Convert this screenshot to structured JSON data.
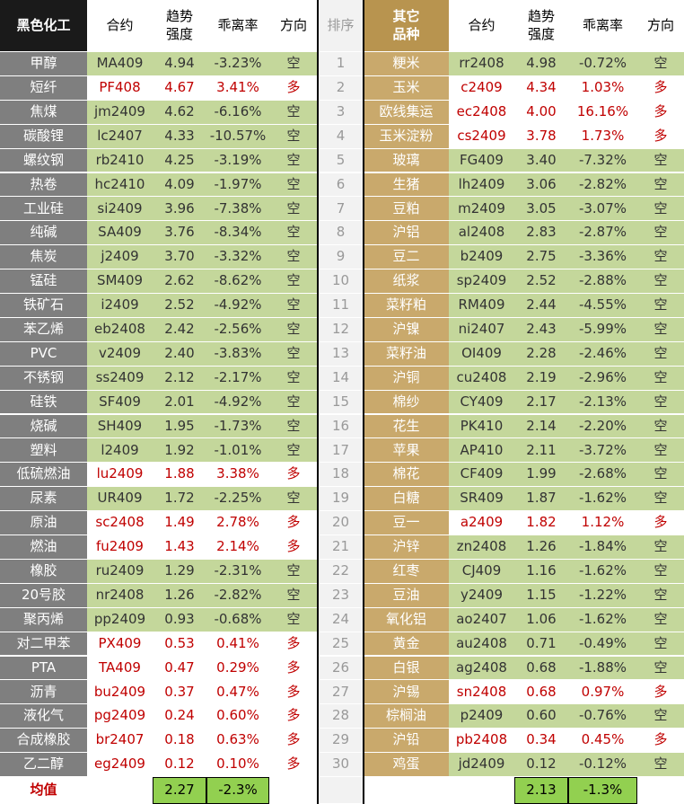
{
  "header": {
    "left": [
      "黑色化工",
      "合约",
      "趋势\n强度",
      "乖离率",
      "方向"
    ],
    "rank": "排序",
    "right": [
      "其它\n品种",
      "合约",
      "趋势\n强度",
      "乖离率",
      "方向"
    ]
  },
  "ranks": [
    "1",
    "2",
    "3",
    "4",
    "5",
    "6",
    "7",
    "8",
    "9",
    "10",
    "11",
    "12",
    "13",
    "14",
    "15",
    "16",
    "17",
    "18",
    "19",
    "20",
    "21",
    "22",
    "23",
    "24",
    "25",
    "26",
    "27",
    "28",
    "29",
    "30"
  ],
  "left_rows": [
    [
      "甲醇",
      "MA409",
      "4.94",
      "-3.23%",
      "空"
    ],
    [
      "短纤",
      "PF408",
      "4.67",
      "3.41%",
      "多"
    ],
    [
      "焦煤",
      "jm2409",
      "4.62",
      "-6.16%",
      "空"
    ],
    [
      "碳酸锂",
      "lc2407",
      "4.33",
      "-10.57%",
      "空"
    ],
    [
      "螺纹钢",
      "rb2410",
      "4.25",
      "-3.19%",
      "空"
    ],
    [
      "热卷",
      "hc2410",
      "4.09",
      "-1.97%",
      "空"
    ],
    [
      "工业硅",
      "si2409",
      "3.96",
      "-7.38%",
      "空"
    ],
    [
      "纯碱",
      "SA409",
      "3.76",
      "-8.34%",
      "空"
    ],
    [
      "焦炭",
      "j2409",
      "3.70",
      "-3.32%",
      "空"
    ],
    [
      "锰硅",
      "SM409",
      "2.62",
      "-8.62%",
      "空"
    ],
    [
      "铁矿石",
      "i2409",
      "2.52",
      "-4.92%",
      "空"
    ],
    [
      "苯乙烯",
      "eb2408",
      "2.42",
      "-2.56%",
      "空"
    ],
    [
      "PVC",
      "v2409",
      "2.40",
      "-3.83%",
      "空"
    ],
    [
      "不锈钢",
      "ss2409",
      "2.12",
      "-2.17%",
      "空"
    ],
    [
      "硅铁",
      "SF409",
      "2.01",
      "-4.92%",
      "空"
    ],
    [
      "烧碱",
      "SH409",
      "1.95",
      "-1.73%",
      "空"
    ],
    [
      "塑料",
      "l2409",
      "1.92",
      "-1.01%",
      "空"
    ],
    [
      "低硫燃油",
      "lu2409",
      "1.88",
      "3.38%",
      "多"
    ],
    [
      "尿素",
      "UR409",
      "1.72",
      "-2.25%",
      "空"
    ],
    [
      "原油",
      "sc2408",
      "1.49",
      "2.78%",
      "多"
    ],
    [
      "燃油",
      "fu2409",
      "1.43",
      "2.14%",
      "多"
    ],
    [
      "橡胶",
      "ru2409",
      "1.29",
      "-2.31%",
      "空"
    ],
    [
      "20号胶",
      "nr2408",
      "1.26",
      "-2.82%",
      "空"
    ],
    [
      "聚丙烯",
      "pp2409",
      "0.93",
      "-0.68%",
      "空"
    ],
    [
      "对二甲苯",
      "PX409",
      "0.53",
      "0.41%",
      "多"
    ],
    [
      "PTA",
      "TA409",
      "0.47",
      "0.29%",
      "多"
    ],
    [
      "沥青",
      "bu2409",
      "0.37",
      "0.47%",
      "多"
    ],
    [
      "液化气",
      "pg2409",
      "0.24",
      "0.60%",
      "多"
    ],
    [
      "合成橡胶",
      "br2407",
      "0.18",
      "0.63%",
      "多"
    ],
    [
      "乙二醇",
      "eg2409",
      "0.12",
      "0.10%",
      "多"
    ]
  ],
  "right_rows": [
    [
      "粳米",
      "rr2408",
      "4.98",
      "-0.72%",
      "空"
    ],
    [
      "玉米",
      "c2409",
      "4.34",
      "1.03%",
      "多"
    ],
    [
      "欧线集运",
      "ec2408",
      "4.00",
      "16.16%",
      "多"
    ],
    [
      "玉米淀粉",
      "cs2409",
      "3.78",
      "1.73%",
      "多"
    ],
    [
      "玻璃",
      "FG409",
      "3.40",
      "-7.32%",
      "空"
    ],
    [
      "生猪",
      "lh2409",
      "3.06",
      "-2.82%",
      "空"
    ],
    [
      "豆粕",
      "m2409",
      "3.05",
      "-3.07%",
      "空"
    ],
    [
      "沪铝",
      "al2408",
      "2.83",
      "-2.87%",
      "空"
    ],
    [
      "豆二",
      "b2409",
      "2.75",
      "-3.36%",
      "空"
    ],
    [
      "纸浆",
      "sp2409",
      "2.52",
      "-2.88%",
      "空"
    ],
    [
      "菜籽粕",
      "RM409",
      "2.44",
      "-4.55%",
      "空"
    ],
    [
      "沪镍",
      "ni2407",
      "2.43",
      "-5.99%",
      "空"
    ],
    [
      "菜籽油",
      "OI409",
      "2.28",
      "-2.46%",
      "空"
    ],
    [
      "沪铜",
      "cu2408",
      "2.19",
      "-2.96%",
      "空"
    ],
    [
      "棉纱",
      "CY409",
      "2.17",
      "-2.13%",
      "空"
    ],
    [
      "花生",
      "PK410",
      "2.14",
      "-2.20%",
      "空"
    ],
    [
      "苹果",
      "AP410",
      "2.11",
      "-3.72%",
      "空"
    ],
    [
      "棉花",
      "CF409",
      "1.99",
      "-2.68%",
      "空"
    ],
    [
      "白糖",
      "SR409",
      "1.87",
      "-1.62%",
      "空"
    ],
    [
      "豆一",
      "a2409",
      "1.82",
      "1.12%",
      "多"
    ],
    [
      "沪锌",
      "zn2408",
      "1.26",
      "-1.84%",
      "空"
    ],
    [
      "红枣",
      "CJ409",
      "1.16",
      "-1.62%",
      "空"
    ],
    [
      "豆油",
      "y2409",
      "1.15",
      "-1.22%",
      "空"
    ],
    [
      "氧化铝",
      "ao2407",
      "1.06",
      "-1.62%",
      "空"
    ],
    [
      "黄金",
      "au2408",
      "0.71",
      "-0.49%",
      "空"
    ],
    [
      "白银",
      "ag2408",
      "0.68",
      "-1.88%",
      "空"
    ],
    [
      "沪锡",
      "sn2408",
      "0.68",
      "0.97%",
      "多"
    ],
    [
      "棕榈油",
      "p2409",
      "0.60",
      "-0.76%",
      "空"
    ],
    [
      "沪铅",
      "pb2408",
      "0.34",
      "0.45%",
      "多"
    ],
    [
      "鸡蛋",
      "jd2409",
      "0.12",
      "-0.12%",
      "空"
    ]
  ],
  "footer": {
    "label": "均值",
    "left": [
      "2.27",
      "-2.3%"
    ],
    "right": [
      "2.13",
      "-1.3%"
    ]
  }
}
